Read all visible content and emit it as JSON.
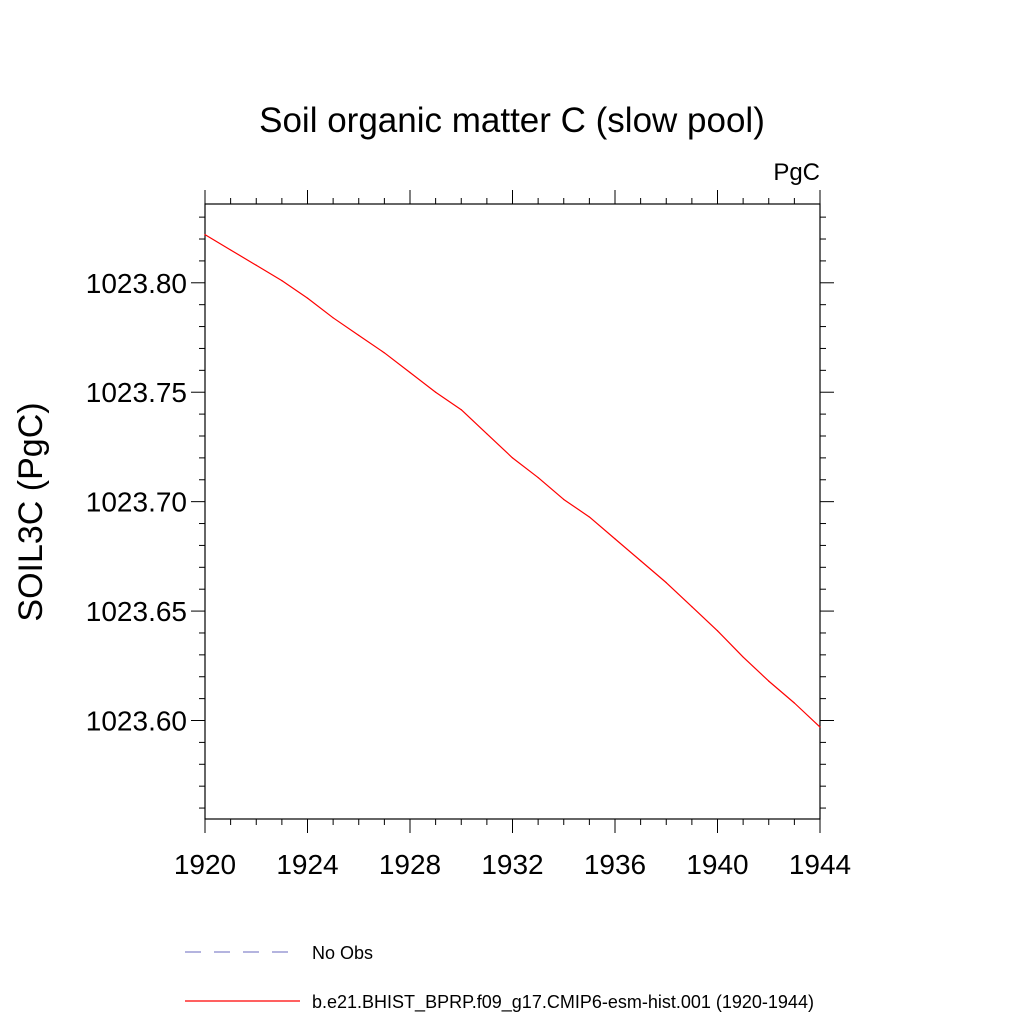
{
  "chart_data": {
    "type": "line",
    "title": "Soil organic matter C (slow pool)",
    "units_label": "PgC",
    "xlabel": "",
    "ylabel": "SOIL3C  (PgC)",
    "xlim": [
      1920,
      1944
    ],
    "ylim": [
      1023.555,
      1023.836
    ],
    "x_ticks": [
      1920,
      1924,
      1928,
      1932,
      1936,
      1940,
      1944
    ],
    "x_tick_labels": [
      "1920",
      "1924",
      "1928",
      "1932",
      "1936",
      "1940",
      "1944"
    ],
    "y_ticks": [
      1023.6,
      1023.65,
      1023.7,
      1023.75,
      1023.8
    ],
    "y_tick_labels": [
      "1023.60",
      "1023.65",
      "1023.70",
      "1023.75",
      "1023.80"
    ],
    "x_minor_step": 1,
    "y_minor_step": 0.01,
    "legend_position": "bottom",
    "series": [
      {
        "name": "b.e21.BHIST_BPRP.f09_g17.CMIP6-esm-hist.001 (1920-1944)",
        "color": "#ff0000",
        "style": "solid",
        "x": [
          1920,
          1921,
          1922,
          1923,
          1924,
          1925,
          1926,
          1927,
          1928,
          1929,
          1930,
          1931,
          1932,
          1933,
          1934,
          1935,
          1936,
          1937,
          1938,
          1939,
          1940,
          1941,
          1942,
          1943,
          1944
        ],
        "values": [
          1023.822,
          1023.815,
          1023.808,
          1023.801,
          1023.793,
          1023.784,
          1023.776,
          1023.768,
          1023.759,
          1023.75,
          1023.742,
          1023.731,
          1023.72,
          1023.711,
          1023.701,
          1023.693,
          1023.683,
          1023.673,
          1023.663,
          1023.652,
          1023.641,
          1023.629,
          1023.618,
          1023.608,
          1023.597
        ]
      }
    ],
    "legend": [
      {
        "label": "No Obs",
        "color": "#8888cc",
        "style": "dashed"
      },
      {
        "label": "b.e21.BHIST_BPRP.f09_g17.CMIP6-esm-hist.001 (1920-1944)",
        "color": "#ff0000",
        "style": "solid"
      }
    ]
  }
}
